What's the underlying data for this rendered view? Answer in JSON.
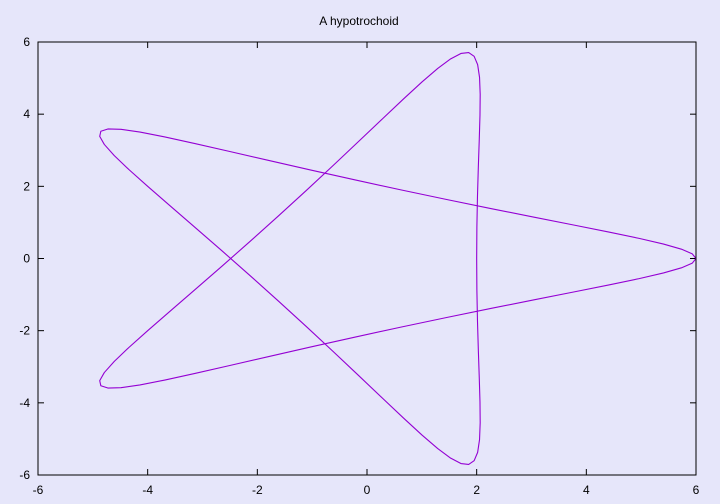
{
  "chart_data": {
    "type": "line",
    "title": "A hypotrochoid",
    "xlabel": "",
    "ylabel": "",
    "xlim": [
      -6,
      6
    ],
    "ylim": [
      -6,
      6
    ],
    "xticks": [
      -6,
      -4,
      -2,
      0,
      2,
      4,
      6
    ],
    "yticks": [
      -6,
      -4,
      -2,
      0,
      2,
      4,
      6
    ],
    "grid": false,
    "legend": "none",
    "colors": {
      "background": "#e6e6fa",
      "line": "#9400d3",
      "axis": "#000000"
    },
    "series": [
      {
        "curve": "hypotrochoid",
        "parameters": {
          "R": 5,
          "r": 3,
          "d": 4
        },
        "t_range": [
          0,
          18.8496
        ],
        "samples": 100
      }
    ]
  }
}
